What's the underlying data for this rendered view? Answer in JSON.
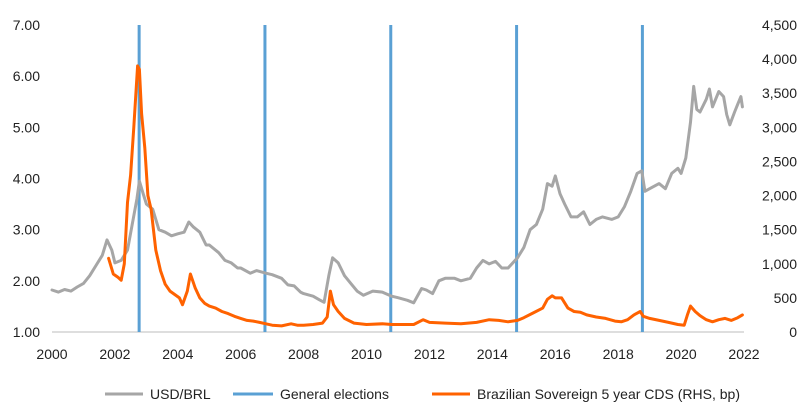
{
  "chart_data": {
    "type": "line",
    "title": "",
    "xlabel": "",
    "ylabel": "",
    "y2label": "",
    "xlim": [
      2000,
      2022
    ],
    "ylim": [
      1.0,
      7.0
    ],
    "y2lim": [
      0,
      4500
    ],
    "grid": false,
    "legend_position": "bottom",
    "x_ticks": [
      "2000",
      "2002",
      "2004",
      "2006",
      "2008",
      "2010",
      "2012",
      "2014",
      "2016",
      "2018",
      "2020",
      "2022"
    ],
    "y_ticks": [
      "1.00",
      "2.00",
      "3.00",
      "4.00",
      "5.00",
      "6.00",
      "7.00"
    ],
    "y2_ticks": [
      "0",
      "500",
      "1,000",
      "1,500",
      "2,000",
      "2,500",
      "3,000",
      "3,500",
      "4,000",
      "4,500"
    ],
    "election_years": [
      2002.77,
      2006.77,
      2010.77,
      2014.77,
      2018.77
    ],
    "series": [
      {
        "name": "USD/BRL",
        "axis": "left",
        "color": "#a6a6a6",
        "points": [
          [
            2000.0,
            1.82
          ],
          [
            2000.2,
            1.78
          ],
          [
            2000.4,
            1.83
          ],
          [
            2000.6,
            1.8
          ],
          [
            2000.8,
            1.88
          ],
          [
            2001.0,
            1.95
          ],
          [
            2001.2,
            2.1
          ],
          [
            2001.4,
            2.3
          ],
          [
            2001.6,
            2.5
          ],
          [
            2001.75,
            2.8
          ],
          [
            2001.9,
            2.6
          ],
          [
            2002.0,
            2.35
          ],
          [
            2002.2,
            2.4
          ],
          [
            2002.4,
            2.6
          ],
          [
            2002.55,
            3.1
          ],
          [
            2002.7,
            3.6
          ],
          [
            2002.78,
            3.95
          ],
          [
            2002.9,
            3.7
          ],
          [
            2003.0,
            3.5
          ],
          [
            2003.2,
            3.4
          ],
          [
            2003.4,
            3.0
          ],
          [
            2003.6,
            2.95
          ],
          [
            2003.8,
            2.88
          ],
          [
            2004.0,
            2.92
          ],
          [
            2004.2,
            2.95
          ],
          [
            2004.35,
            3.15
          ],
          [
            2004.5,
            3.05
          ],
          [
            2004.7,
            2.95
          ],
          [
            2004.9,
            2.7
          ],
          [
            2005.0,
            2.7
          ],
          [
            2005.3,
            2.55
          ],
          [
            2005.5,
            2.4
          ],
          [
            2005.7,
            2.35
          ],
          [
            2005.9,
            2.25
          ],
          [
            2006.0,
            2.25
          ],
          [
            2006.3,
            2.15
          ],
          [
            2006.5,
            2.2
          ],
          [
            2006.8,
            2.15
          ],
          [
            2007.0,
            2.12
          ],
          [
            2007.3,
            2.05
          ],
          [
            2007.5,
            1.92
          ],
          [
            2007.7,
            1.9
          ],
          [
            2007.9,
            1.78
          ],
          [
            2008.0,
            1.75
          ],
          [
            2008.3,
            1.7
          ],
          [
            2008.5,
            1.63
          ],
          [
            2008.65,
            1.58
          ],
          [
            2008.8,
            2.1
          ],
          [
            2008.92,
            2.45
          ],
          [
            2009.1,
            2.35
          ],
          [
            2009.3,
            2.1
          ],
          [
            2009.5,
            1.95
          ],
          [
            2009.7,
            1.8
          ],
          [
            2009.9,
            1.72
          ],
          [
            2010.2,
            1.8
          ],
          [
            2010.5,
            1.78
          ],
          [
            2010.8,
            1.7
          ],
          [
            2011.0,
            1.67
          ],
          [
            2011.3,
            1.62
          ],
          [
            2011.5,
            1.57
          ],
          [
            2011.75,
            1.85
          ],
          [
            2011.9,
            1.82
          ],
          [
            2012.1,
            1.75
          ],
          [
            2012.3,
            2.0
          ],
          [
            2012.5,
            2.05
          ],
          [
            2012.8,
            2.05
          ],
          [
            2013.0,
            2.0
          ],
          [
            2013.3,
            2.05
          ],
          [
            2013.5,
            2.25
          ],
          [
            2013.7,
            2.4
          ],
          [
            2013.9,
            2.33
          ],
          [
            2014.1,
            2.38
          ],
          [
            2014.3,
            2.25
          ],
          [
            2014.5,
            2.25
          ],
          [
            2014.8,
            2.45
          ],
          [
            2015.0,
            2.65
          ],
          [
            2015.2,
            3.0
          ],
          [
            2015.4,
            3.1
          ],
          [
            2015.6,
            3.4
          ],
          [
            2015.75,
            3.9
          ],
          [
            2015.9,
            3.85
          ],
          [
            2016.0,
            4.05
          ],
          [
            2016.15,
            3.7
          ],
          [
            2016.3,
            3.5
          ],
          [
            2016.5,
            3.25
          ],
          [
            2016.7,
            3.25
          ],
          [
            2016.9,
            3.35
          ],
          [
            2017.1,
            3.1
          ],
          [
            2017.3,
            3.2
          ],
          [
            2017.5,
            3.25
          ],
          [
            2017.8,
            3.2
          ],
          [
            2018.0,
            3.25
          ],
          [
            2018.2,
            3.45
          ],
          [
            2018.4,
            3.75
          ],
          [
            2018.6,
            4.1
          ],
          [
            2018.75,
            4.15
          ],
          [
            2018.85,
            3.75
          ],
          [
            2019.0,
            3.8
          ],
          [
            2019.3,
            3.9
          ],
          [
            2019.5,
            3.8
          ],
          [
            2019.7,
            4.1
          ],
          [
            2019.9,
            4.2
          ],
          [
            2020.0,
            4.1
          ],
          [
            2020.15,
            4.4
          ],
          [
            2020.3,
            5.1
          ],
          [
            2020.4,
            5.8
          ],
          [
            2020.5,
            5.35
          ],
          [
            2020.6,
            5.3
          ],
          [
            2020.8,
            5.55
          ],
          [
            2020.9,
            5.75
          ],
          [
            2021.0,
            5.4
          ],
          [
            2021.2,
            5.7
          ],
          [
            2021.35,
            5.6
          ],
          [
            2021.45,
            5.25
          ],
          [
            2021.55,
            5.05
          ],
          [
            2021.7,
            5.3
          ],
          [
            2021.8,
            5.45
          ],
          [
            2021.9,
            5.6
          ],
          [
            2021.95,
            5.4
          ]
        ]
      },
      {
        "name": "General elections",
        "axis": "left",
        "color": "#5aa0d4",
        "points": []
      },
      {
        "name": "Brazilian Sovereign 5 year CDS (RHS, bp)",
        "axis": "right",
        "color": "#ff6200",
        "points": [
          [
            2001.8,
            1080
          ],
          [
            2001.95,
            850
          ],
          [
            2002.1,
            800
          ],
          [
            2002.2,
            760
          ],
          [
            2002.3,
            1000
          ],
          [
            2002.4,
            1900
          ],
          [
            2002.5,
            2300
          ],
          [
            2002.6,
            3000
          ],
          [
            2002.72,
            3900
          ],
          [
            2002.78,
            3850
          ],
          [
            2002.85,
            3200
          ],
          [
            2002.95,
            2700
          ],
          [
            2003.05,
            2000
          ],
          [
            2003.15,
            1800
          ],
          [
            2003.3,
            1200
          ],
          [
            2003.45,
            900
          ],
          [
            2003.6,
            700
          ],
          [
            2003.75,
            600
          ],
          [
            2003.9,
            550
          ],
          [
            2004.05,
            500
          ],
          [
            2004.15,
            400
          ],
          [
            2004.3,
            600
          ],
          [
            2004.4,
            850
          ],
          [
            2004.55,
            650
          ],
          [
            2004.7,
            500
          ],
          [
            2004.85,
            420
          ],
          [
            2005.0,
            380
          ],
          [
            2005.2,
            350
          ],
          [
            2005.4,
            300
          ],
          [
            2005.6,
            270
          ],
          [
            2005.8,
            230
          ],
          [
            2006.0,
            200
          ],
          [
            2006.2,
            170
          ],
          [
            2006.4,
            160
          ],
          [
            2006.6,
            140
          ],
          [
            2006.8,
            120
          ],
          [
            2007.0,
            100
          ],
          [
            2007.3,
            90
          ],
          [
            2007.6,
            120
          ],
          [
            2007.8,
            100
          ],
          [
            2008.0,
            100
          ],
          [
            2008.3,
            110
          ],
          [
            2008.6,
            130
          ],
          [
            2008.75,
            220
          ],
          [
            2008.85,
            600
          ],
          [
            2008.95,
            400
          ],
          [
            2009.1,
            300
          ],
          [
            2009.3,
            200
          ],
          [
            2009.6,
            130
          ],
          [
            2010.0,
            110
          ],
          [
            2010.5,
            120
          ],
          [
            2010.8,
            110
          ],
          [
            2011.0,
            110
          ],
          [
            2011.5,
            110
          ],
          [
            2011.8,
            180
          ],
          [
            2012.0,
            140
          ],
          [
            2012.5,
            130
          ],
          [
            2013.0,
            120
          ],
          [
            2013.5,
            140
          ],
          [
            2013.9,
            180
          ],
          [
            2014.2,
            170
          ],
          [
            2014.5,
            150
          ],
          [
            2014.8,
            170
          ],
          [
            2015.0,
            210
          ],
          [
            2015.3,
            280
          ],
          [
            2015.6,
            350
          ],
          [
            2015.75,
            480
          ],
          [
            2015.9,
            530
          ],
          [
            2016.0,
            500
          ],
          [
            2016.2,
            500
          ],
          [
            2016.4,
            350
          ],
          [
            2016.6,
            300
          ],
          [
            2016.8,
            290
          ],
          [
            2017.0,
            250
          ],
          [
            2017.3,
            220
          ],
          [
            2017.6,
            200
          ],
          [
            2017.9,
            160
          ],
          [
            2018.1,
            150
          ],
          [
            2018.3,
            180
          ],
          [
            2018.5,
            250
          ],
          [
            2018.7,
            300
          ],
          [
            2018.8,
            230
          ],
          [
            2019.0,
            200
          ],
          [
            2019.3,
            170
          ],
          [
            2019.6,
            140
          ],
          [
            2019.9,
            110
          ],
          [
            2020.1,
            100
          ],
          [
            2020.2,
            250
          ],
          [
            2020.3,
            380
          ],
          [
            2020.45,
            300
          ],
          [
            2020.6,
            240
          ],
          [
            2020.8,
            180
          ],
          [
            2021.0,
            150
          ],
          [
            2021.2,
            180
          ],
          [
            2021.4,
            200
          ],
          [
            2021.6,
            170
          ],
          [
            2021.8,
            210
          ],
          [
            2021.95,
            250
          ]
        ]
      }
    ]
  }
}
